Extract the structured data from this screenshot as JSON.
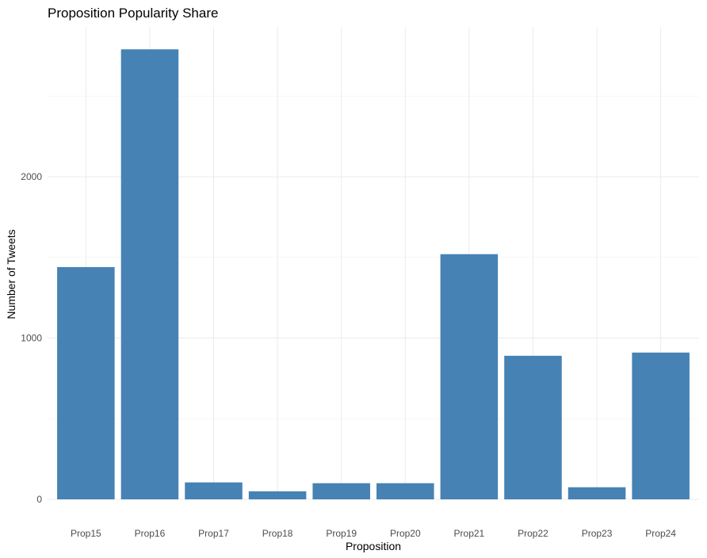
{
  "chart_data": {
    "type": "bar",
    "title": "Proposition Popularity Share",
    "xlabel": "Proposition",
    "ylabel": "Number of Tweets",
    "categories": [
      "Prop15",
      "Prop16",
      "Prop17",
      "Prop18",
      "Prop19",
      "Prop20",
      "Prop21",
      "Prop22",
      "Prop23",
      "Prop24"
    ],
    "values": [
      1440,
      2790,
      105,
      50,
      100,
      100,
      1520,
      890,
      75,
      910
    ],
    "ylim": [
      0,
      2900
    ],
    "yticks": [
      0,
      1000,
      2000
    ],
    "grid": true,
    "bar_color": "#4682B4"
  }
}
